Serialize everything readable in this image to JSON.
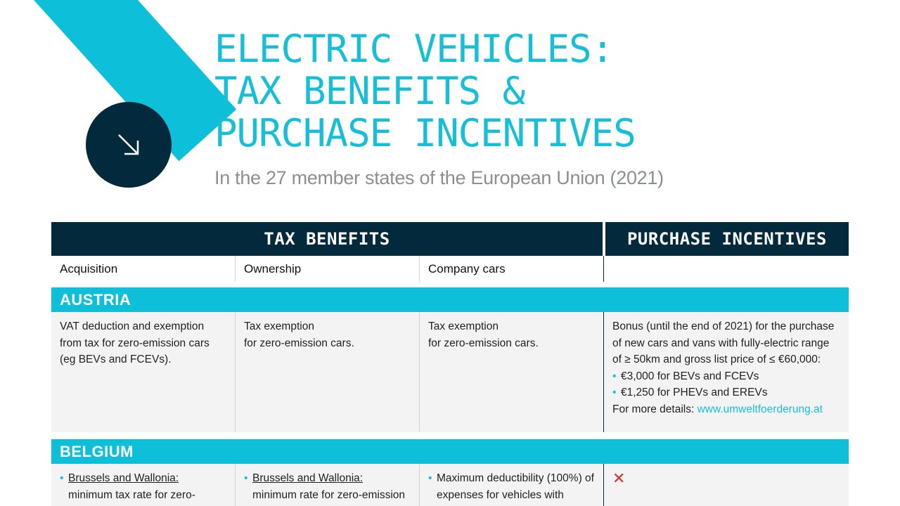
{
  "title_lines": [
    "ELECTRIC VEHICLES:",
    "TAX BENEFITS &",
    "PURCHASE INCENTIVES"
  ],
  "subtitle": "In the 27 member states of the European Union (2021)",
  "colors": {
    "accent": "#16bfd8",
    "navy": "#032a3c",
    "cross": "#d1312a"
  },
  "icons": {
    "circle": "arrow-down-right-icon",
    "none": "cross-icon"
  },
  "table": {
    "header_tax": "TAX BENEFITS",
    "header_purchase": "PURCHASE INCENTIVES",
    "columns": [
      "Acquisition",
      "Ownership",
      "Company cars",
      ""
    ]
  },
  "austria": {
    "name": "AUSTRIA",
    "acquisition": "VAT deduction and exemption from tax for zero-emission cars (eg BEVs and FCEVs).",
    "ownership_1": "Tax exemption",
    "ownership_2": "for zero-emission cars.",
    "company_1": "Tax exemption",
    "company_2": "for zero-emission cars.",
    "purchase_intro": "Bonus (until the end of 2021) for the purchase of new cars and vans with fully-electric range of ≥ 50km and gross list price of ≤ €60,000:",
    "purchase_bullets": [
      "€3,000 for BEVs and FCEVs",
      "€1,250 for PHEVs and EREVs"
    ],
    "purchase_more_label": "For more details: ",
    "purchase_more_link": "www.umweltfoerderung.at"
  },
  "belgium": {
    "name": "BELGIUM",
    "acquisition_title": "Brussels and Wallonia:",
    "acquisition_text": "minimum tax rate for zero-",
    "ownership_title": "Brussels and Wallonia:",
    "ownership_text": "minimum rate for zero-emission",
    "company_text": "Maximum deductibility (100%) of expenses for vehicles with",
    "purchase_mark": "✕"
  }
}
